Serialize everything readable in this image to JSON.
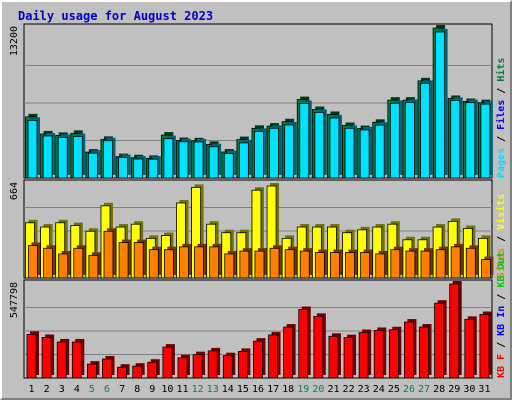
{
  "chart_data": {
    "type": "bar",
    "title": "Daily usage for August 2023",
    "colors": {
      "hits": "#008040",
      "files": "#00c0ff",
      "pages": "#00e0ff",
      "visits": "#ffff00",
      "sites": "#ff8000",
      "kbin": "#00cc00",
      "kbout": "#0000ff",
      "kbf": "#ff0000",
      "panel_bg": "#c0c0c0",
      "grid": "#808080",
      "weekday": "#000000",
      "weekend": "#00805c"
    },
    "categories": [
      "1",
      "2",
      "3",
      "4",
      "5",
      "6",
      "7",
      "8",
      "9",
      "10",
      "11",
      "12",
      "13",
      "14",
      "15",
      "16",
      "17",
      "18",
      "19",
      "20",
      "21",
      "22",
      "23",
      "24",
      "25",
      "26",
      "27",
      "28",
      "29",
      "30",
      "31"
    ],
    "weekend_days": [
      "5",
      "6",
      "12",
      "13",
      "19",
      "20",
      "26",
      "27"
    ],
    "panels": [
      {
        "id": "hits-files-pages",
        "ymax_label": "13200",
        "ymax": 13200,
        "legend_parts": [
          {
            "text": "Pages",
            "color": "#00e0ff"
          },
          {
            "text": " / ",
            "color": "#000000"
          },
          {
            "text": "Files",
            "color": "#0000ff"
          },
          {
            "text": " / ",
            "color": "#000000"
          },
          {
            "text": "Hits",
            "color": "#008040"
          }
        ],
        "series": [
          {
            "name": "Hits",
            "values": [
              5380,
              3880,
              3750,
              3930,
              2280,
              3400,
              1880,
              1780,
              1730,
              3780,
              3300,
              3270,
              2960,
              2290,
              3380,
              4370,
              4570,
              4950,
              6900,
              6030,
              5590,
              4620,
              4350,
              4900,
              6850,
              6850,
              8550,
              13200,
              7000,
              6730,
              6630
            ]
          },
          {
            "name": "Files",
            "values": [
              5070,
              3700,
              3570,
              3650,
              2190,
              3280,
              1800,
              1670,
              1650,
              3460,
              3190,
              3170,
              2750,
              2150,
              3090,
              4100,
              4370,
              4670,
              6560,
              5770,
              5280,
              4370,
              4230,
              4650,
              6560,
              6650,
              8330,
              12850,
              6830,
              6630,
              6500
            ]
          },
          {
            "name": "Pages",
            "values": [
              5070,
              3700,
              3570,
              3650,
              2190,
              3280,
              1800,
              1670,
              1650,
              3460,
              3190,
              3170,
              2750,
              2150,
              3090,
              4100,
              4370,
              4670,
              6560,
              5770,
              5280,
              4370,
              4230,
              4650,
              6560,
              6650,
              8330,
              12850,
              6830,
              6630,
              6500
            ]
          }
        ]
      },
      {
        "id": "visits-sites",
        "ymax_label": "664",
        "ymax": 664,
        "legend_parts": [
          {
            "text": "Sites",
            "color": "#ff8000"
          },
          {
            "text": " / ",
            "color": "#000000"
          },
          {
            "text": "Visits",
            "color": "#ffff00"
          }
        ],
        "series": [
          {
            "name": "Visits",
            "values": [
              390,
              360,
              390,
              370,
              330,
              510,
              360,
              380,
              280,
              300,
              530,
              640,
              380,
              320,
              320,
              620,
              650,
              280,
              360,
              360,
              360,
              320,
              340,
              360,
              380,
              270,
              270,
              360,
              400,
              350,
              280
            ]
          },
          {
            "name": "Sites",
            "values": [
              230,
              210,
              170,
              210,
              160,
              330,
              250,
              250,
              200,
              200,
              220,
              220,
              220,
              170,
              190,
              190,
              210,
              200,
              190,
              180,
              180,
              180,
              180,
              170,
              200,
              190,
              190,
              200,
              220,
              210,
              130
            ]
          }
        ]
      },
      {
        "id": "kbytes",
        "ymax_label": "547798",
        "ymax": 547798,
        "legend_parts": [
          {
            "text": "KB F",
            "color": "#ff0000"
          },
          {
            "text": " / ",
            "color": "#000000"
          },
          {
            "text": "KB In",
            "color": "#0000ff"
          },
          {
            "text": " / ",
            "color": "#000000"
          },
          {
            "text": "KB Out",
            "color": "#00cc00"
          }
        ],
        "series": [
          {
            "name": "KB F",
            "values": [
              254000,
              236000,
              210000,
              210000,
              81000,
              111000,
              63000,
              69000,
              92000,
              180000,
              118000,
              136000,
              158000,
              130000,
              155000,
              215000,
              251000,
              297000,
              399000,
              359000,
              243000,
              235000,
              265000,
              277000,
              281000,
              326000,
              297000,
              436000,
              547798,
              342000,
              370000
            ]
          }
        ]
      }
    ]
  }
}
